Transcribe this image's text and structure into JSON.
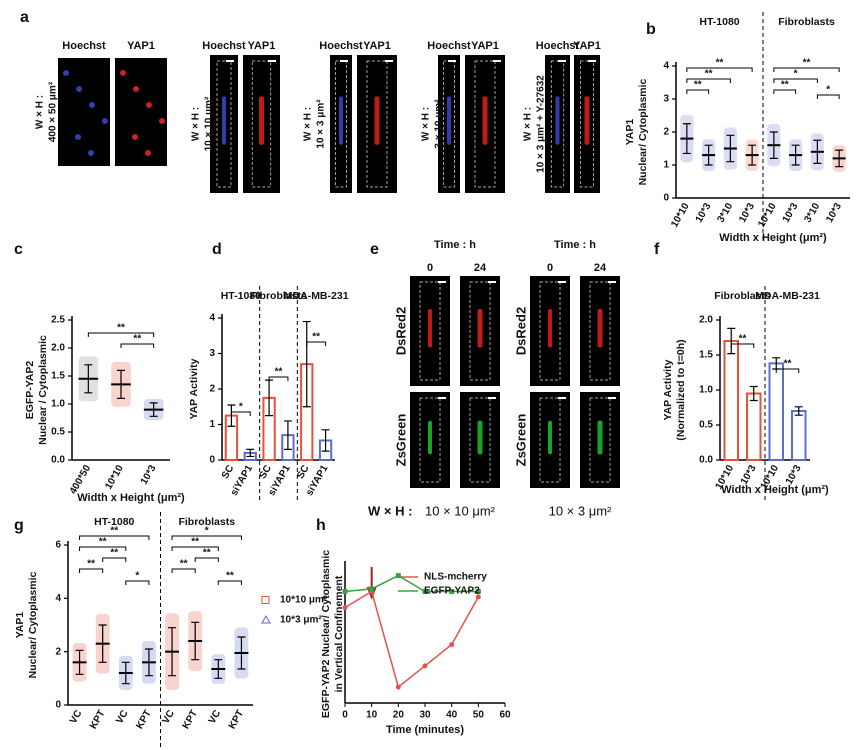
{
  "panel_labels": [
    "a",
    "b",
    "c",
    "d",
    "e",
    "f",
    "g",
    "h"
  ],
  "panel_a": {
    "groups": [
      {
        "channels": [
          "Hoechst",
          "YAP1"
        ],
        "size": [
          "W × H :",
          "400 × 50 μm²"
        ]
      },
      {
        "channels": [
          "Hoechst",
          "YAP1"
        ],
        "size": [
          "W × H :",
          "10 × 10 μm²"
        ]
      },
      {
        "channels": [
          "Hoechst",
          "YAP1"
        ],
        "size": [
          "W × H :",
          "10 × 3 μm²"
        ]
      },
      {
        "channels": [
          "Hoechst",
          "YAP1"
        ],
        "size": [
          "W × H :",
          "3 × 10 μm²"
        ]
      },
      {
        "channels": [
          "Hoechst",
          "YAP1"
        ],
        "size": [
          "W × H :",
          "10 × 3 μm² + Y-27632"
        ]
      }
    ]
  },
  "panel_e": {
    "time_label": "Time : h",
    "times": [
      "0",
      "24"
    ],
    "channels": [
      "DsRed2",
      "ZsGreen"
    ],
    "size_label": "W × H :",
    "sizes": [
      "10 × 10 μm²",
      "10 × 3 μm²"
    ]
  },
  "chart_data": [
    {
      "type": "dot",
      "groups": [
        "HT-1080",
        "Fibroblasts"
      ],
      "categories": [
        "10*10",
        "10*3",
        "3*10",
        "10*3",
        "10*10",
        "10*3",
        "3*10",
        "10*3"
      ],
      "values": [
        1.8,
        1.3,
        1.5,
        1.3,
        1.6,
        1.3,
        1.4,
        1.2
      ],
      "errors": [
        0.45,
        0.3,
        0.4,
        0.3,
        0.4,
        0.3,
        0.35,
        0.25
      ],
      "colors": [
        "#6e78d2",
        "#6e78d2",
        "#6e78d2",
        "#e8704a",
        "#6e78d2",
        "#6e78d2",
        "#6e78d2",
        "#e8503a"
      ],
      "ylabel": [
        "YAP1",
        "Nuclear/ Cytoplasmic"
      ],
      "xlabel": "Width x Height (μm²)",
      "ylim": [
        0,
        4
      ],
      "yticks": [
        0,
        1,
        2,
        3,
        4
      ],
      "annotations": [
        "**",
        "**",
        "**",
        "**",
        "*",
        "**",
        "*"
      ]
    },
    {
      "type": "dot",
      "categories": [
        "400*50",
        "10*10",
        "10*3"
      ],
      "values": [
        1.45,
        1.35,
        0.9
      ],
      "errors": [
        0.25,
        0.25,
        0.12
      ],
      "colors": [
        "#888888",
        "#e8503a",
        "#5b6ec8"
      ],
      "ylabel": [
        "EGFP-YAP2",
        "Nuclear / Cytoplasmic"
      ],
      "xlabel": "Width x Height (μm²)",
      "ylim": [
        0,
        2.5
      ],
      "yticks": [
        {
          "value": 0,
          "label": "0.0"
        },
        {
          "value": 0.5,
          "label": "0.5"
        },
        {
          "value": 1,
          "label": "1.0"
        },
        {
          "value": 1.5,
          "label": "1.5"
        },
        {
          "value": 2,
          "label": "2.0"
        },
        {
          "value": 2.5,
          "label": "2.5"
        }
      ],
      "annotations": [
        "**",
        "**"
      ]
    },
    {
      "type": "bar",
      "groups": [
        "HT-1080",
        "Fibroblasts",
        "MDA-MB-231"
      ],
      "categories": [
        "SC",
        "siYAP1",
        "SC",
        "siYAP1",
        "SC",
        "siYAP1"
      ],
      "values": [
        1.25,
        0.2,
        1.75,
        0.7,
        2.7,
        0.55
      ],
      "errors": [
        0.3,
        0.1,
        0.5,
        0.4,
        1.2,
        0.3
      ],
      "colors": [
        "#e8503a",
        "#5b6ec8",
        "#e8503a",
        "#5b6ec8",
        "#e8503a",
        "#5b6ec8"
      ],
      "ylabel": [
        "YAP Activity"
      ],
      "ylim": [
        0,
        4
      ],
      "yticks": [
        0,
        1,
        2,
        3,
        4
      ],
      "annotations": [
        "*",
        "**",
        "**"
      ]
    },
    {
      "type": "bar",
      "groups": [
        "Fibroblasts",
        "MDA-MB-231"
      ],
      "categories": [
        "10*10",
        "10*3",
        "10*10",
        "10*3"
      ],
      "values": [
        1.7,
        0.95,
        1.38,
        0.7
      ],
      "errors": [
        0.18,
        0.1,
        0.08,
        0.06
      ],
      "colors": [
        "#e8503a",
        "#e8503a",
        "#5b6ec8",
        "#5b6ec8"
      ],
      "ylabel": [
        "YAP Activity",
        "(Normalized to t=0h)"
      ],
      "xlabel": "Width x Height (μm²)",
      "ylim": [
        0,
        2
      ],
      "yticks": [
        {
          "value": 0,
          "label": "0.0"
        },
        {
          "value": 0.5,
          "label": "0.5"
        },
        {
          "value": 1,
          "label": "1.0"
        },
        {
          "value": 1.5,
          "label": "1.5"
        },
        {
          "value": 2,
          "label": "2.0"
        }
      ],
      "annotations": [
        "**",
        "**"
      ]
    },
    {
      "type": "dot",
      "groups": [
        "HT-1080",
        "Fibroblasts"
      ],
      "categories": [
        "VC",
        "KPT",
        "VC",
        "KPT",
        "VC",
        "KPT",
        "VC",
        "KPT"
      ],
      "values": [
        1.6,
        2.3,
        1.2,
        1.6,
        2.0,
        2.4,
        1.35,
        1.95
      ],
      "errors": [
        0.45,
        0.7,
        0.4,
        0.5,
        0.9,
        0.7,
        0.35,
        0.6
      ],
      "colors": [
        "#e8503a",
        "#e8503a",
        "#5b6ec8",
        "#5b6ec8",
        "#e8503a",
        "#e8503a",
        "#5b6ec8",
        "#5b6ec8"
      ],
      "legend": [
        {
          "name": "10*10 μm²",
          "color": "#e8503a"
        },
        {
          "name": "10*3 μm²",
          "color": "#5b6ec8"
        }
      ],
      "ylabel": [
        "YAP1",
        "Nuclear/ Cytoplasmic"
      ],
      "ylim": [
        0,
        6
      ],
      "yticks": [
        0,
        2,
        4,
        6
      ],
      "annotations": [
        "**",
        "**",
        "**",
        "**",
        "*",
        "*",
        "**",
        "**",
        "**",
        "**"
      ]
    },
    {
      "type": "line",
      "x": [
        0,
        10,
        20,
        30,
        40,
        50
      ],
      "series": [
        {
          "name": "NLS-mcherry",
          "color": "#e8504a",
          "values": [
            1.23,
            1.26,
            1.08,
            1.12,
            1.16,
            1.25
          ]
        },
        {
          "name": "EGFP-YAP2",
          "color": "#3aa040",
          "values": [
            1.26,
            1.265,
            1.29,
            1.26,
            1.26,
            1.26
          ]
        }
      ],
      "ylabel": [
        "EGFP-YAP2 Nuclear/ Cytoplasmic",
        "in Vertical Confinement"
      ],
      "xlabel": "Time (minutes)",
      "xlim": [
        0,
        60
      ],
      "xticks": [
        0,
        10,
        20,
        30,
        40,
        50,
        60
      ],
      "ylim": [
        1.05,
        1.31
      ]
    }
  ]
}
